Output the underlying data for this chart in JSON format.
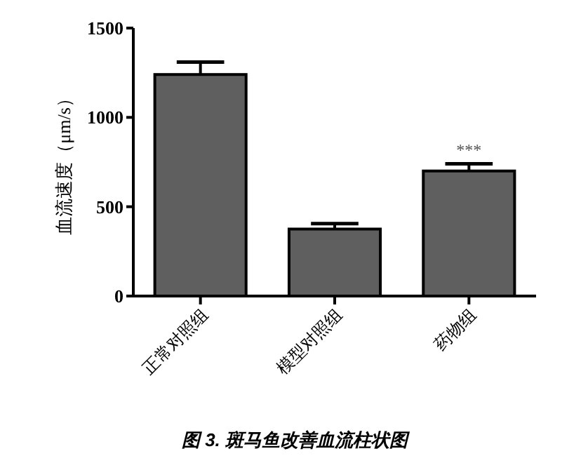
{
  "chart_data": {
    "type": "bar",
    "title": "图 3. 斑马鱼改善血流柱状图",
    "ylabel": "血流速度（μm/s）",
    "categories": [
      "正常对照组",
      "模型对照组",
      "药物组"
    ],
    "values": [
      1240,
      375,
      700
    ],
    "errors": [
      [
        1240,
        1310
      ],
      [
        375,
        405
      ],
      [
        700,
        740
      ]
    ],
    "color": "#5f5f5f",
    "ylim": [
      0,
      1500
    ],
    "yticks": [
      0,
      500,
      1000,
      1500
    ],
    "annotations": [
      {
        "text": "***",
        "x": "药物组",
        "y": 740
      }
    ],
    "grid": false
  }
}
